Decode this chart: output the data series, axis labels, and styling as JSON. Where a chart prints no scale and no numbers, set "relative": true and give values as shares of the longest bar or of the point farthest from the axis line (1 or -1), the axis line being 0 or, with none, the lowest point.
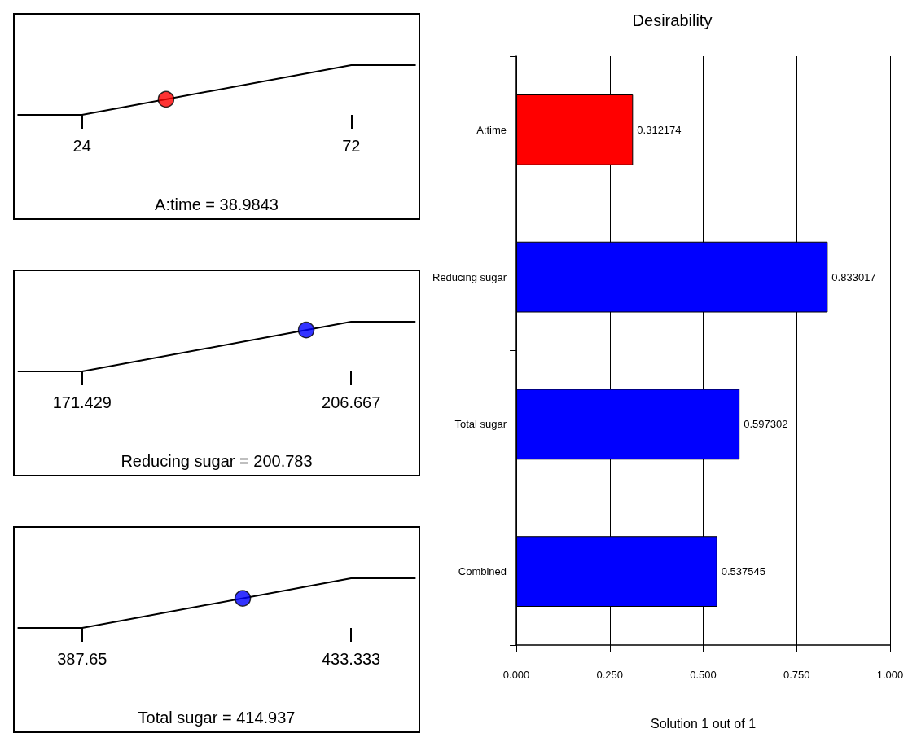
{
  "chart_data": [
    {
      "type": "line",
      "relative": true,
      "xlabel": "A:time = 38.9843",
      "xlim": [
        12,
        84
      ],
      "xticks": [
        24,
        72
      ],
      "tick_labels": "x",
      "grid": false,
      "series": [
        {
          "type": "line",
          "color": "#000000",
          "marker": "none",
          "x": [
            12.5,
            24,
            72,
            83.5
          ],
          "values": [
            0,
            0,
            1,
            1
          ]
        },
        {
          "type": "scatter",
          "color": "#ff0000",
          "marker": "circle",
          "x": [
            38.9843
          ],
          "values": [
            0.312174
          ]
        }
      ]
    },
    {
      "type": "line",
      "relative": true,
      "xlabel": "Reducing sugar = 200.783",
      "xlim": [
        162.6,
        215.5
      ],
      "xticks": [
        171.429,
        206.667
      ],
      "tick_labels": "x",
      "grid": false,
      "series": [
        {
          "type": "line",
          "color": "#000000",
          "marker": "none",
          "x": [
            163,
            171.429,
            206.667,
            215.1
          ],
          "values": [
            0,
            0,
            1,
            1
          ]
        },
        {
          "type": "scatter",
          "color": "#0000ff",
          "marker": "circle",
          "x": [
            200.783
          ],
          "values": [
            0.833017
          ]
        }
      ]
    },
    {
      "type": "line",
      "relative": true,
      "xlabel": "Total sugar = 414.937",
      "xlim": [
        376.2,
        444.8
      ],
      "xticks": [
        387.65,
        433.333
      ],
      "tick_labels": "x",
      "grid": false,
      "series": [
        {
          "type": "line",
          "color": "#000000",
          "marker": "none",
          "x": [
            376.7,
            387.65,
            433.333,
            444.3
          ],
          "values": [
            0,
            0,
            1,
            1
          ]
        },
        {
          "type": "scatter",
          "color": "#0000ff",
          "marker": "circle",
          "x": [
            414.937
          ],
          "values": [
            0.597302
          ]
        }
      ]
    },
    {
      "type": "bar",
      "orientation": "horizontal",
      "title": "Desirability",
      "xlabel": "Solution 1 out of 1",
      "categories": [
        "A:time",
        "Reducing sugar",
        "Total sugar",
        "Combined"
      ],
      "values": [
        0.312174,
        0.833017,
        0.597302,
        0.537545
      ],
      "colors": [
        "#ff0000",
        "#0000ff",
        "#0000ff",
        "#0000ff"
      ],
      "data_labels": true,
      "xlim": [
        0,
        1
      ],
      "xticks": [
        {
          "value": 0,
          "label": "0.000"
        },
        {
          "value": 0.25,
          "label": "0.250"
        },
        {
          "value": 0.5,
          "label": "0.500"
        },
        {
          "value": 0.75,
          "label": "0.750"
        },
        {
          "value": 1,
          "label": "1.000"
        }
      ],
      "grid": "x"
    }
  ]
}
